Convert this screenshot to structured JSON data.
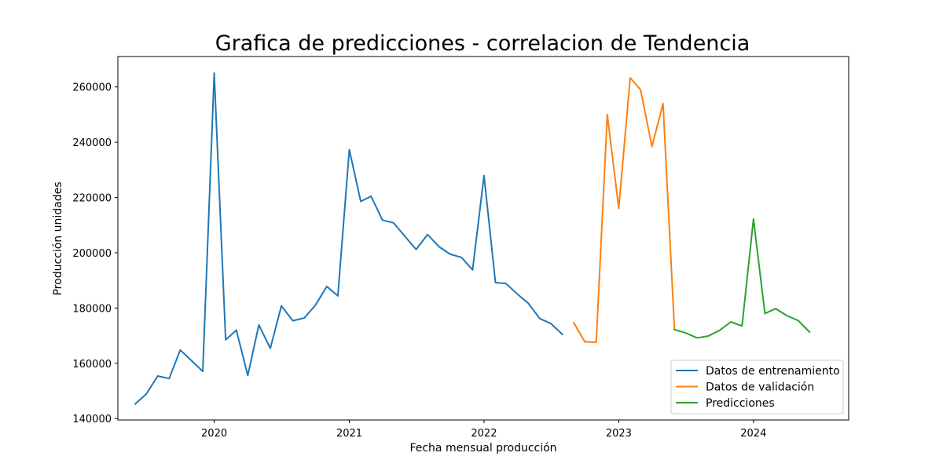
{
  "chart_data": {
    "type": "line",
    "title": "Grafica de predicciones - correlacion de Tendencia",
    "xlabel": "Fecha mensual producción",
    "ylabel": "Producción unidades",
    "xlim": [
      "2019-04-15",
      "2024-09-15"
    ],
    "ylim": [
      139500,
      271000
    ],
    "x_ticks": [
      "2020-01-01",
      "2021-01-01",
      "2022-01-01",
      "2023-01-01",
      "2024-01-01"
    ],
    "x_tick_labels": [
      "2020",
      "2021",
      "2022",
      "2023",
      "2024"
    ],
    "y_ticks": [
      140000,
      160000,
      180000,
      200000,
      220000,
      240000,
      260000
    ],
    "y_tick_labels": [
      "140000",
      "160000",
      "180000",
      "200000",
      "220000",
      "240000",
      "260000"
    ],
    "grid": false,
    "legend": "bottom-right",
    "series": [
      {
        "name": "Datos de entrenamiento",
        "color": "#1f77b4",
        "x": [
          "2019-06-01",
          "2019-07-01",
          "2019-08-01",
          "2019-09-01",
          "2019-10-01",
          "2019-11-01",
          "2019-12-01",
          "2020-01-01",
          "2020-02-01",
          "2020-03-01",
          "2020-04-01",
          "2020-05-01",
          "2020-06-01",
          "2020-07-01",
          "2020-08-01",
          "2020-09-01",
          "2020-10-01",
          "2020-11-01",
          "2020-12-01",
          "2021-01-01",
          "2021-02-01",
          "2021-03-01",
          "2021-04-01",
          "2021-05-01",
          "2021-06-01",
          "2021-07-01",
          "2021-08-01",
          "2021-09-01",
          "2021-10-01",
          "2021-11-01",
          "2021-12-01",
          "2022-01-01",
          "2022-02-01",
          "2022-03-01",
          "2022-04-01",
          "2022-05-01",
          "2022-06-01",
          "2022-07-01",
          "2022-08-01"
        ],
        "y": [
          145300,
          148900,
          155400,
          154500,
          164800,
          160900,
          157100,
          265000,
          168500,
          172000,
          155600,
          173900,
          165400,
          180800,
          175400,
          176400,
          181000,
          187800,
          184400,
          237300,
          218600,
          220400,
          211800,
          210800,
          205900,
          201200,
          206600,
          202200,
          199500,
          198300,
          193800,
          227900,
          189200,
          188900,
          185100,
          181700,
          176200,
          174400,
          170500
        ]
      },
      {
        "name": "Datos de validación",
        "color": "#ff7f0e",
        "x": [
          "2022-09-01",
          "2022-10-01",
          "2022-11-01",
          "2022-12-01",
          "2023-01-01",
          "2023-02-01",
          "2023-03-01",
          "2023-04-01",
          "2023-05-01",
          "2023-06-01"
        ],
        "y": [
          174700,
          167800,
          167600,
          250000,
          216000,
          263300,
          259000,
          238400,
          254000,
          172200
        ]
      },
      {
        "name": "Predicciones",
        "color": "#2ca02c",
        "x": [
          "2023-06-01",
          "2023-07-01",
          "2023-08-01",
          "2023-09-01",
          "2023-10-01",
          "2023-11-01",
          "2023-12-01",
          "2024-01-01",
          "2024-02-01",
          "2024-03-01",
          "2024-04-01",
          "2024-05-01",
          "2024-06-01"
        ],
        "y": [
          172200,
          171000,
          169200,
          169900,
          171900,
          175000,
          173500,
          212200,
          178000,
          179800,
          177200,
          175500,
          171300
        ]
      }
    ]
  }
}
